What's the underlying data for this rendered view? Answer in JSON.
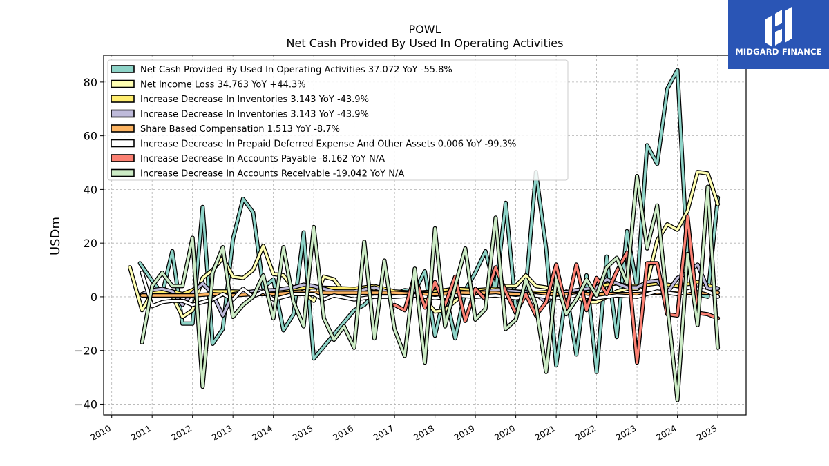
{
  "header": {
    "title": "POWL",
    "subtitle": "Net Cash Provided By Used In Operating Activities"
  },
  "brand": {
    "name": "MIDGARD FINANCE",
    "color": "#2a55b5"
  },
  "chart_data": {
    "type": "line",
    "ylabel": "USDm",
    "xlabel": "",
    "ylim": [
      -44,
      90
    ],
    "xlim": [
      2009.8,
      2025.7
    ],
    "yticks": [
      -40,
      -20,
      0,
      20,
      40,
      60,
      80
    ],
    "xticks": [
      "2010",
      "2011",
      "2012",
      "2013",
      "2014",
      "2015",
      "2016",
      "2017",
      "2018",
      "2019",
      "2020",
      "2021",
      "2022",
      "2023",
      "2024",
      "2025"
    ],
    "grid": true,
    "legend_position": "top-left",
    "series": [
      {
        "name": "Net Cash Provided By Used In Operating Activities",
        "legend_label": "Net Cash Provided By Used In Operating Activities  37.072 YoY -55.8%",
        "color": "#8dd3c7",
        "x": [
          2010.7,
          2011.0,
          2011.25,
          2011.5,
          2011.75,
          2012.0,
          2012.25,
          2012.5,
          2012.75,
          2013.0,
          2013.25,
          2013.5,
          2013.75,
          2014.0,
          2014.25,
          2014.5,
          2014.75,
          2015.0,
          2016.0,
          2016.25,
          2016.5,
          2016.75,
          2017.0,
          2017.25,
          2017.5,
          2017.75,
          2018.0,
          2018.25,
          2018.5,
          2018.75,
          2019.0,
          2019.25,
          2019.5,
          2019.75,
          2020.0,
          2020.25,
          2020.5,
          2020.75,
          2021.0,
          2021.25,
          2021.5,
          2021.75,
          2022.0,
          2022.25,
          2022.5,
          2022.75,
          2023.0,
          2023.25,
          2023.5,
          2023.75,
          2024.0,
          2024.25,
          2024.5,
          2024.75,
          2025.0
        ],
        "y": [
          12.5,
          6.0,
          1.0,
          17.0,
          -10.0,
          -10.0,
          33.5,
          -17.5,
          -12.0,
          21.5,
          36.5,
          31.5,
          3.5,
          6.5,
          -12.5,
          -6.5,
          24.0,
          -23.0,
          -5.0,
          -3.0,
          1.0,
          2.5,
          1.0,
          2.5,
          2.0,
          9.5,
          -14.5,
          2.0,
          -15.5,
          2.5,
          9.0,
          17.0,
          2.0,
          35.0,
          -4.5,
          3.0,
          46.5,
          18.0,
          -25.5,
          2.0,
          -21.5,
          8.0,
          -28.0,
          15.0,
          -15.0,
          24.5,
          3.5,
          56.5,
          49.5,
          77.5,
          84.5,
          14.0,
          1.0,
          0.0,
          37.0
        ]
      },
      {
        "name": "Net Income Loss",
        "legend_label": "Net Income Loss  34.763 YoY +44.3%",
        "color": "#ffffb3",
        "x": [
          2010.45,
          2010.75,
          2011.0,
          2011.25,
          2011.5,
          2011.75,
          2012.0,
          2012.25,
          2012.5,
          2012.75,
          2013.0,
          2013.25,
          2013.5,
          2013.75,
          2014.0,
          2014.25,
          2014.5,
          2014.75,
          2015.0,
          2015.25,
          2015.5,
          2015.75,
          2016.0,
          2016.25,
          2016.5,
          2016.75,
          2017.0,
          2017.25,
          2017.5,
          2017.75,
          2018.0,
          2018.25,
          2018.5,
          2018.75,
          2019.0,
          2019.25,
          2019.5,
          2019.75,
          2020.0,
          2020.25,
          2020.5,
          2020.75,
          2021.0,
          2021.25,
          2021.5,
          2021.75,
          2022.0,
          2022.25,
          2022.5,
          2022.75,
          2023.0,
          2023.25,
          2023.5,
          2023.75,
          2024.0,
          2024.25,
          2024.5,
          2024.75,
          2025.0
        ],
        "y": [
          11.0,
          -5.0,
          1.5,
          2.0,
          0.5,
          -7.5,
          -5.0,
          7.0,
          10.0,
          14.5,
          7.5,
          7.0,
          10.0,
          19.0,
          8.5,
          8.0,
          3.0,
          1.5,
          -1.5,
          7.5,
          6.5,
          1.5,
          2.0,
          3.0,
          3.0,
          3.0,
          1.0,
          1.5,
          1.0,
          -1.0,
          -5.5,
          -5.0,
          -1.5,
          1.0,
          1.0,
          1.5,
          1.0,
          4.0,
          4.0,
          8.0,
          4.0,
          3.5,
          1.0,
          1.5,
          0.0,
          -2.0,
          -2.0,
          0.0,
          2.0,
          3.0,
          3.0,
          5.0,
          21.0,
          27.0,
          25.0,
          32.0,
          46.5,
          46.0,
          34.5
        ]
      },
      {
        "name": "Increase Decrease In Inventories",
        "legend_label": "Increase Decrease In Inventories  3.143 YoY -43.9%",
        "color": "#ffed6f",
        "x": [
          2010.75,
          2011.0,
          2011.5,
          2011.75,
          2012.0,
          2012.25,
          2012.5,
          2013.0,
          2014.0,
          2014.5,
          2015.0,
          2016.0,
          2016.5,
          2017.0,
          2017.5,
          2018.0,
          2018.5,
          2019.0,
          2019.5,
          2020.0,
          2020.5,
          2021.0,
          2021.5,
          2022.0,
          2022.5,
          2022.75,
          2023.0,
          2023.5,
          2024.0,
          2024.5,
          2025.0
        ],
        "y": [
          1.0,
          1.5,
          2.0,
          1.0,
          2.5,
          4.5,
          2.0,
          2.0,
          1.5,
          3.0,
          3.5,
          3.0,
          4.0,
          2.0,
          1.5,
          2.0,
          3.0,
          2.5,
          3.0,
          2.0,
          1.5,
          2.0,
          1.5,
          4.0,
          5.0,
          4.0,
          4.0,
          5.0,
          4.0,
          5.5,
          3.1
        ]
      },
      {
        "name": "Increase Decrease In Inventories",
        "legend_label": "Increase Decrease In Inventories  3.143 YoY -43.9%",
        "color": "#bebada",
        "x": [
          2010.75,
          2011.0,
          2011.25,
          2011.5,
          2011.75,
          2012.0,
          2012.25,
          2012.5,
          2012.75,
          2013.0,
          2013.5,
          2014.0,
          2014.5,
          2014.75,
          2015.0,
          2015.5,
          2016.0,
          2016.5,
          2017.0,
          2017.5,
          2018.0,
          2018.5,
          2019.0,
          2019.5,
          2020.0,
          2020.5,
          2020.75,
          2021.0,
          2021.5,
          2022.0,
          2022.25,
          2022.5,
          2022.75,
          2023.0,
          2023.25,
          2023.5,
          2023.75,
          2024.0,
          2024.25,
          2024.5,
          2024.75,
          2025.0
        ],
        "y": [
          1.0,
          2.5,
          3.0,
          2.0,
          -3.0,
          1.5,
          5.0,
          1.0,
          -7.0,
          1.0,
          2.0,
          2.5,
          3.5,
          4.5,
          4.0,
          2.0,
          2.0,
          3.5,
          1.0,
          1.5,
          1.0,
          2.0,
          1.5,
          2.5,
          2.0,
          1.0,
          -2.0,
          1.0,
          2.5,
          3.5,
          6.5,
          5.0,
          3.5,
          3.5,
          5.5,
          6.0,
          1.5,
          7.0,
          9.0,
          12.0,
          3.0,
          3.1
        ]
      },
      {
        "name": "Share Based Compensation",
        "legend_label": "Share Based Compensation  1.513 YoY -8.7%",
        "color": "#fdb462",
        "x": [
          2010.75,
          2011.0,
          2011.5,
          2012.0,
          2012.5,
          2013.0,
          2013.5,
          2014.0,
          2014.5,
          2015.0,
          2015.5,
          2016.0,
          2016.5,
          2017.0,
          2017.5,
          2018.0,
          2018.5,
          2019.0,
          2019.5,
          2020.0,
          2020.5,
          2021.0,
          2021.5,
          2022.0,
          2022.5,
          2023.0,
          2023.5,
          2024.0,
          2024.5,
          2025.0
        ],
        "y": [
          0.5,
          0.5,
          0.5,
          0.5,
          1.0,
          0.5,
          1.0,
          1.0,
          1.5,
          1.5,
          1.5,
          1.5,
          1.5,
          1.5,
          1.0,
          1.0,
          1.5,
          1.5,
          1.5,
          1.0,
          1.0,
          1.0,
          1.0,
          1.0,
          1.0,
          1.0,
          1.5,
          1.5,
          1.5,
          1.5
        ]
      },
      {
        "name": "Increase Decrease In Prepaid Deferred Expense And Other Assets",
        "legend_label": "Increase Decrease In Prepaid Deferred Expense And Other Assets  0.006 YoY -99.3%",
        "color": "#ffffff",
        "x": [
          2010.75,
          2011.0,
          2011.25,
          2011.5,
          2011.75,
          2012.0,
          2012.25,
          2012.5,
          2012.75,
          2013.0,
          2013.25,
          2013.5,
          2013.75,
          2014.0,
          2014.5,
          2015.0,
          2015.25,
          2015.5,
          2016.0,
          2016.5,
          2017.0,
          2017.5,
          2018.0,
          2018.5,
          2019.0,
          2019.5,
          2020.0,
          2020.5,
          2021.0,
          2021.5,
          2022.0,
          2022.5,
          2023.0,
          2023.5,
          2024.0,
          2024.5,
          2024.75,
          2025.0
        ],
        "y": [
          9.0,
          -3.5,
          -2.0,
          -1.5,
          -1.5,
          -3.0,
          -2.0,
          -1.0,
          1.0,
          -1.0,
          3.0,
          0.0,
          2.0,
          -1.0,
          1.0,
          1.0,
          -1.0,
          0.5,
          -1.0,
          0.0,
          0.0,
          0.5,
          -0.5,
          0.5,
          0.0,
          0.5,
          -0.5,
          0.5,
          -0.5,
          0.5,
          -0.5,
          0.5,
          0.0,
          2.0,
          1.0,
          3.0,
          2.0,
          0.0
        ]
      },
      {
        "name": "Increase Decrease In Accounts Payable",
        "legend_label": "Increase Decrease In Accounts Payable  -8.162 YoY N/A",
        "color": "#fb8072",
        "x": [
          2017.0,
          2017.25,
          2017.5,
          2017.75,
          2018.0,
          2018.25,
          2018.5,
          2018.75,
          2019.0,
          2019.25,
          2019.5,
          2019.75,
          2020.0,
          2020.25,
          2020.5,
          2020.75,
          2021.0,
          2021.25,
          2021.5,
          2021.75,
          2022.0,
          2022.25,
          2022.5,
          2022.75,
          2023.0,
          2023.25,
          2023.5,
          2023.75,
          2024.0,
          2024.25,
          2024.5,
          2024.75,
          2025.0
        ],
        "y": [
          -3.0,
          -5.0,
          8.0,
          -4.0,
          5.5,
          -3.0,
          7.5,
          -9.0,
          3.0,
          -1.0,
          11.0,
          2.0,
          -6.0,
          1.0,
          -7.0,
          -2.0,
          12.0,
          -5.0,
          12.0,
          -5.0,
          7.0,
          1.0,
          9.5,
          16.5,
          -24.5,
          12.5,
          12.5,
          -6.5,
          -7.0,
          30.0,
          -6.0,
          -6.5,
          -8.0
        ]
      },
      {
        "name": "Increase Decrease In Accounts Receivable",
        "legend_label": "Increase Decrease In Accounts Receivable  -19.042 YoY N/A",
        "color": "#ccebc5",
        "x": [
          2010.75,
          2011.0,
          2011.25,
          2011.5,
          2011.75,
          2012.0,
          2012.25,
          2012.5,
          2012.75,
          2013.0,
          2013.25,
          2013.5,
          2013.75,
          2014.0,
          2014.25,
          2014.5,
          2014.75,
          2015.0,
          2015.25,
          2015.5,
          2015.75,
          2016.0,
          2016.25,
          2016.5,
          2016.75,
          2017.0,
          2017.25,
          2017.5,
          2017.75,
          2018.0,
          2018.25,
          2018.5,
          2018.75,
          2019.0,
          2019.25,
          2019.5,
          2019.75,
          2020.0,
          2020.25,
          2020.5,
          2020.75,
          2021.0,
          2021.25,
          2021.5,
          2021.75,
          2022.0,
          2022.25,
          2022.5,
          2022.75,
          2023.0,
          2023.25,
          2023.5,
          2023.75,
          2024.0,
          2024.25,
          2024.5,
          2024.75,
          2025.0
        ],
        "y": [
          -17.0,
          4.0,
          9.0,
          4.0,
          4.0,
          22.0,
          -33.5,
          9.0,
          18.5,
          -7.5,
          -3.0,
          0.0,
          8.0,
          -8.0,
          18.5,
          -2.0,
          -11.0,
          26.0,
          -8.0,
          -16.0,
          -11.0,
          -19.0,
          20.5,
          -15.5,
          13.5,
          -12.0,
          -22.0,
          10.5,
          -24.5,
          25.5,
          -11.0,
          4.0,
          18.0,
          -8.5,
          -4.5,
          29.5,
          -12.0,
          -8.5,
          6.5,
          -3.0,
          -28.0,
          6.5,
          -6.5,
          -1.0,
          6.5,
          0.5,
          11.0,
          14.5,
          5.0,
          45.0,
          18.0,
          34.0,
          -2.5,
          -38.5,
          16.0,
          -10.5,
          41.0,
          -19.0
        ]
      }
    ]
  }
}
